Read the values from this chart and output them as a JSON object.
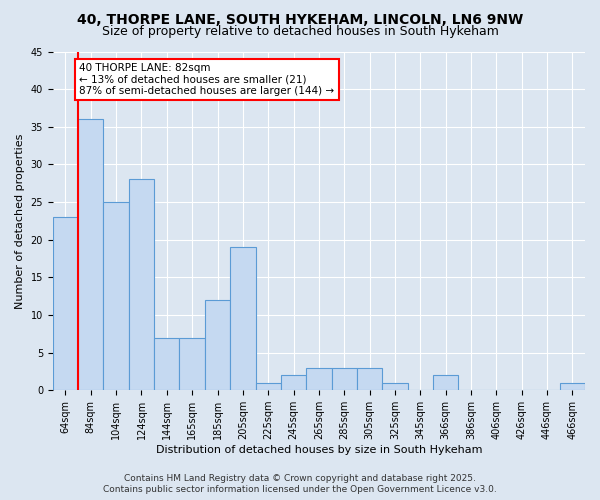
{
  "title_line1": "40, THORPE LANE, SOUTH HYKEHAM, LINCOLN, LN6 9NW",
  "title_line2": "Size of property relative to detached houses in South Hykeham",
  "xlabel": "Distribution of detached houses by size in South Hykeham",
  "ylabel": "Number of detached properties",
  "categories": [
    "64sqm",
    "84sqm",
    "104sqm",
    "124sqm",
    "144sqm",
    "165sqm",
    "185sqm",
    "205sqm",
    "225sqm",
    "245sqm",
    "265sqm",
    "285sqm",
    "305sqm",
    "325sqm",
    "345sqm",
    "366sqm",
    "386sqm",
    "406sqm",
    "426sqm",
    "446sqm",
    "466sqm"
  ],
  "values": [
    23,
    36,
    25,
    28,
    7,
    7,
    12,
    19,
    1,
    2,
    3,
    3,
    3,
    1,
    0,
    2,
    0,
    0,
    0,
    0,
    1
  ],
  "bar_color": "#c5d9f1",
  "bar_edge_color": "#5b9bd5",
  "annotation_text": "40 THORPE LANE: 82sqm\n← 13% of detached houses are smaller (21)\n87% of semi-detached houses are larger (144) →",
  "annotation_box_color": "#ffffff",
  "annotation_box_edge_color": "#ff0000",
  "vertical_line_color": "#ff0000",
  "ylim": [
    0,
    45
  ],
  "yticks": [
    0,
    5,
    10,
    15,
    20,
    25,
    30,
    35,
    40,
    45
  ],
  "background_color": "#dce6f1",
  "footer_line1": "Contains HM Land Registry data © Crown copyright and database right 2025.",
  "footer_line2": "Contains public sector information licensed under the Open Government Licence v3.0.",
  "title_fontsize": 10,
  "subtitle_fontsize": 9,
  "axis_label_fontsize": 8,
  "tick_fontsize": 7,
  "annotation_fontsize": 7.5,
  "footer_fontsize": 6.5
}
